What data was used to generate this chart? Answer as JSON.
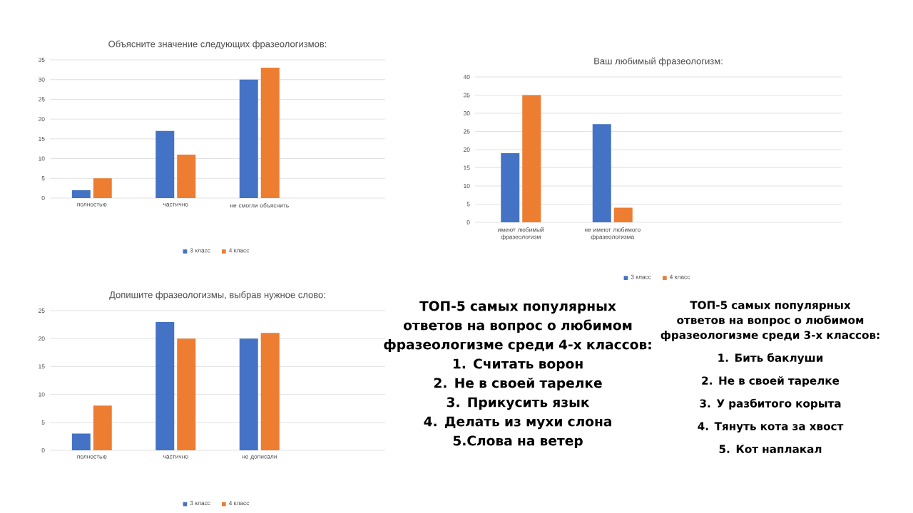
{
  "chart_data": [
    {
      "type": "bar",
      "title": "Объясните значение следующих фразеологизмов:",
      "categories": [
        "полностью",
        "частично",
        "не смогли объяснить"
      ],
      "ylim": [
        0,
        35
      ],
      "yticks": [
        0,
        5,
        10,
        15,
        20,
        25,
        30,
        35
      ],
      "grid": "y",
      "legend": "bottom",
      "series": [
        {
          "name": "3 класс",
          "color": "#4472c4",
          "values": [
            2,
            17,
            30
          ]
        },
        {
          "name": "4 класс",
          "color": "#ed7d31",
          "values": [
            5,
            11,
            33
          ]
        }
      ]
    },
    {
      "type": "bar",
      "title": "Ваш любимый фразеологизм:",
      "categories": [
        "имеют любимый фразеологизм",
        "не имеют любимого фразеологизма"
      ],
      "ylim": [
        0,
        40
      ],
      "yticks": [
        0,
        5,
        10,
        15,
        20,
        25,
        30,
        35,
        40
      ],
      "grid": "y",
      "legend": "bottom",
      "series": [
        {
          "name": "3 класс",
          "color": "#4472c4",
          "values": [
            19,
            27
          ]
        },
        {
          "name": "4 класс",
          "color": "#ed7d31",
          "values": [
            35,
            4
          ]
        }
      ]
    },
    {
      "type": "bar",
      "title": "Допишите фразеологизмы, выбрав нужное слово:",
      "categories": [
        "полностью",
        "частично",
        "не дописали"
      ],
      "ylim": [
        0,
        25
      ],
      "yticks": [
        0,
        5,
        10,
        15,
        20,
        25
      ],
      "grid": "y",
      "legend": "bottom",
      "series": [
        {
          "name": "3 класс",
          "color": "#4472c4",
          "values": [
            3,
            23,
            20
          ]
        },
        {
          "name": "4 класс",
          "color": "#ed7d31",
          "values": [
            8,
            20,
            21
          ]
        }
      ]
    },
    {
      "type": "other",
      "title": "ТОП-5 самых популярных ответов на вопрос о любимом фразеологизме среди 4-х классов:",
      "annotations": [
        "1.  Считать ворон",
        "2. Не в своей тарелке",
        "3. Прикусить язык",
        "4. Делать из мухи слона",
        "5.Слова на ветер"
      ]
    },
    {
      "type": "other",
      "title": "ТОП-5 самых популярных ответов на вопрос о любимом фразеологизме среди 3-х классов:",
      "annotations": [
        "1.   Бить  баклуши",
        "2.   Не в своей тарелке",
        "3.   У разбитого корыта",
        "4.   Тянуть кота за хвост",
        "5.   Кот наплакал"
      ]
    }
  ]
}
